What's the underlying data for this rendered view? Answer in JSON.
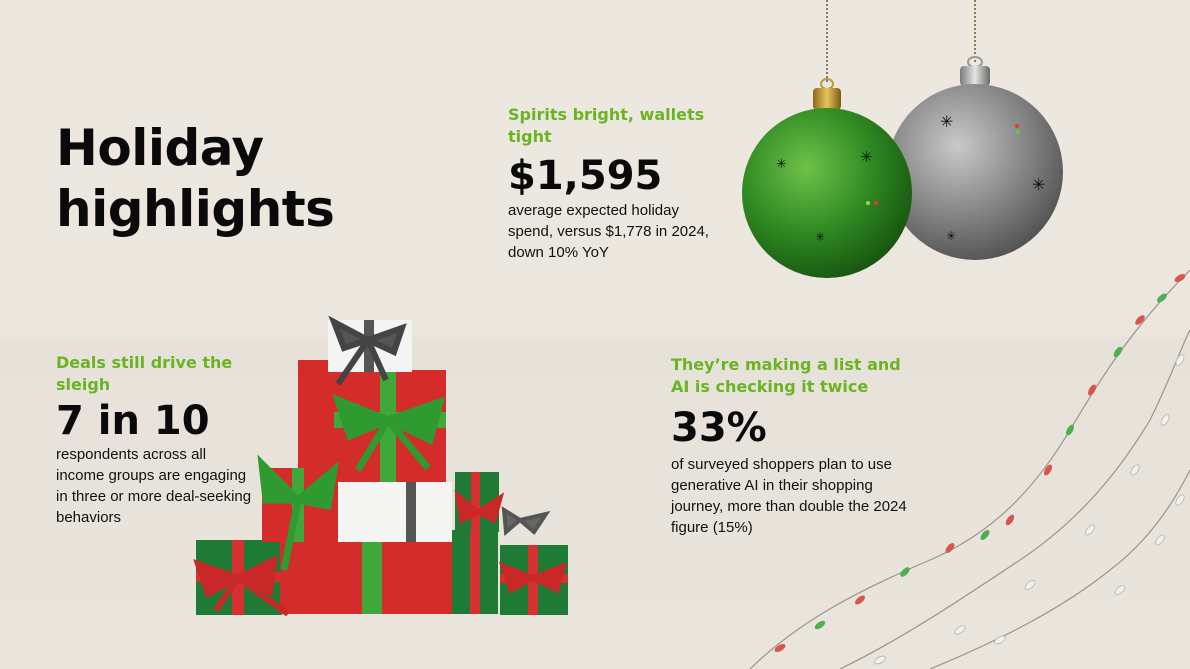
{
  "title_line1": "Holiday",
  "title_line2": "highlights",
  "blocks": {
    "spend": {
      "kicker": "Spirits bright, wallets tight",
      "stat": "$1,595",
      "desc": "average expected holiday spend, versus $1,778 in 2024, down 10% YoY"
    },
    "deals": {
      "kicker": "Deals still drive the sleigh",
      "stat": "7 in 10",
      "desc": "respondents across all income groups are engaging in three or more deal-seeking behaviors"
    },
    "ai": {
      "kicker_line1": "They’re making a list and",
      "kicker_line2": "AI is checking it twice",
      "stat": "33%",
      "desc": "of surveyed shoppers plan to use generative AI in their shopping journey, more than double the 2024 figure (15%)"
    }
  },
  "colors": {
    "accent_green": "#6ab423",
    "text_dark": "#0a0a0a",
    "background": "#ebe7df"
  },
  "icons": [
    "green-ornament-icon",
    "silver-ornament-icon",
    "gift-stack-icon",
    "string-lights-icon"
  ]
}
